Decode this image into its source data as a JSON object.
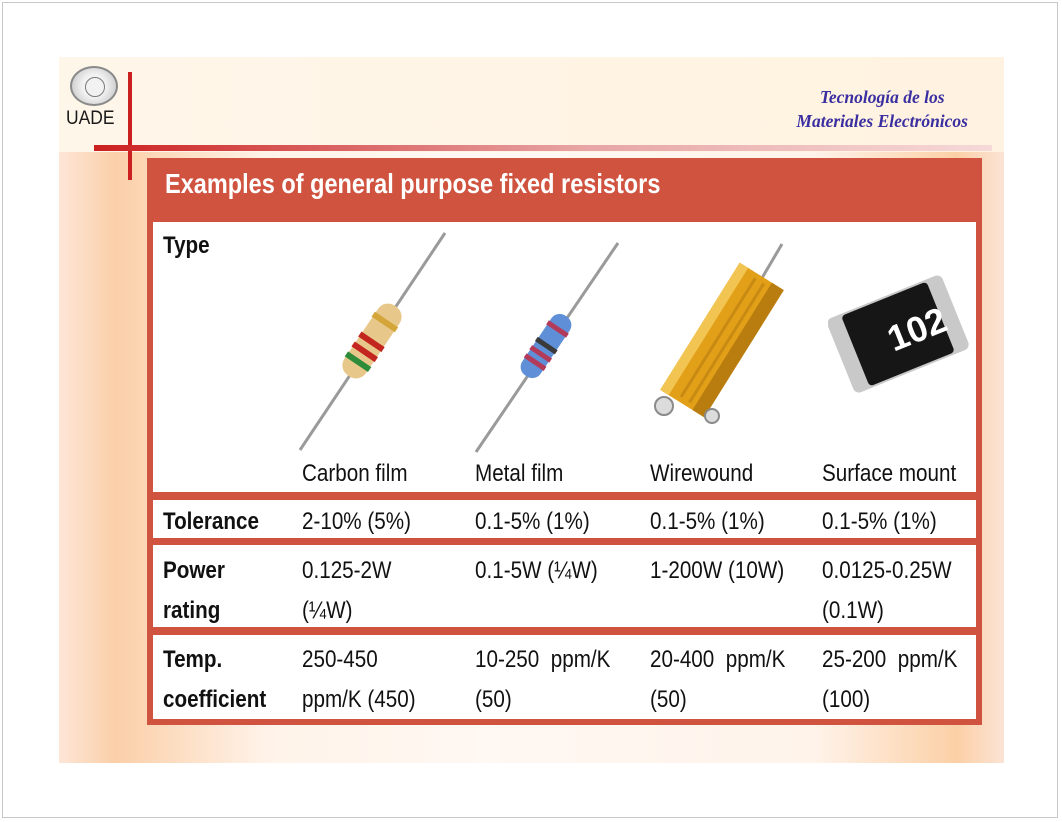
{
  "header": {
    "logo_text": "UADE",
    "course_line1": "Tecnología de los",
    "course_line2": "Materiales Electrónicos"
  },
  "table": {
    "title": "Examples of general purpose fixed resistors",
    "type_label": "Type",
    "types": [
      "Carbon film",
      "Metal film",
      "Wirewound",
      "Surface mount"
    ],
    "smd_marking": "102",
    "rows": [
      {
        "label_lines": [
          "Tolerance"
        ],
        "cells": [
          [
            "2-10% (5%)"
          ],
          [
            "0.1-5% (1%)"
          ],
          [
            "0.1-5% (1%)"
          ],
          [
            "0.1-5% (1%)"
          ]
        ]
      },
      {
        "label_lines": [
          "Power",
          "rating"
        ],
        "cells": [
          [
            "0.125-2W",
            "(¼W)"
          ],
          [
            "0.1-5W (¼W)"
          ],
          [
            "1-200W (10W)"
          ],
          [
            "0.0125-0.25W",
            "(0.1W)"
          ]
        ]
      },
      {
        "label_lines": [
          "Temp.",
          "coefficient"
        ],
        "cells": [
          [
            "250-450",
            "ppm/K (450)"
          ],
          [
            "10-250  ppm/K",
            "(50)"
          ],
          [
            "20-400  ppm/K",
            "(50)"
          ],
          [
            "25-200  ppm/K",
            "(100)"
          ]
        ]
      }
    ]
  },
  "colors": {
    "accent_red": "#cc1f1f",
    "table_header_bg": "#d0533f",
    "course_text": "#3a2fa0"
  }
}
